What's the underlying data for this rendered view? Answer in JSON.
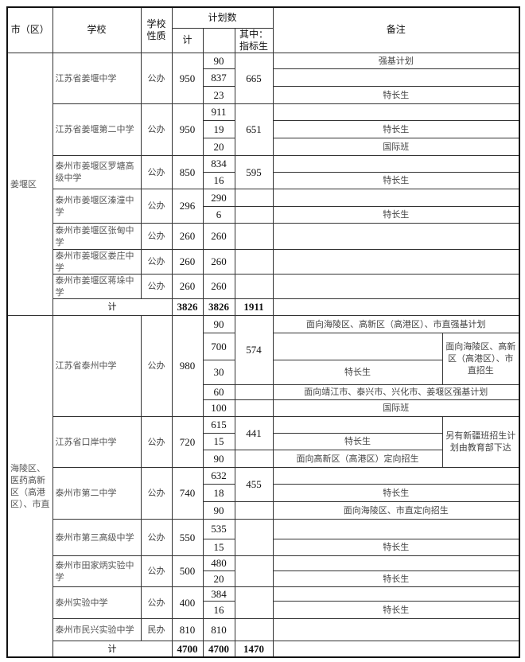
{
  "header": {
    "district": "市（区）",
    "school": "学校",
    "nature": "学校性质",
    "plan": "计划数",
    "total": "计",
    "quota": "其中：指标生",
    "remarks": "备注"
  },
  "jiangyan": {
    "district": "姜堰区",
    "schools": [
      {
        "name": "江苏省姜堰中学",
        "nature": "公办",
        "total": "950",
        "quota": "665",
        "rows": [
          {
            "count": "90",
            "remark": "强基计划"
          },
          {
            "count": "837",
            "remark": ""
          },
          {
            "count": "23",
            "remark": "特长生"
          }
        ]
      },
      {
        "name": "江苏省姜堰第二中学",
        "nature": "公办",
        "total": "950",
        "quota": "651",
        "rows": [
          {
            "count": "911",
            "remark": ""
          },
          {
            "count": "19",
            "remark": "特长生"
          },
          {
            "count": "20",
            "remark": "国际班"
          }
        ]
      },
      {
        "name": "泰州市姜堰区罗塘高级中学",
        "nature": "公办",
        "total": "850",
        "quota": "595",
        "rows": [
          {
            "count": "834",
            "remark": ""
          },
          {
            "count": "16",
            "remark": "特长生"
          }
        ]
      },
      {
        "name": "泰州市姜堰区溱潼中学",
        "nature": "公办",
        "total": "296",
        "rows": [
          {
            "count": "290",
            "remark": ""
          },
          {
            "count": "6",
            "remark": "特长生"
          }
        ]
      },
      {
        "name": "泰州市姜堰区张甸中学",
        "nature": "公办",
        "total": "260",
        "rows": [
          {
            "count": "260"
          }
        ]
      },
      {
        "name": "泰州市姜堰区娄庄中学",
        "nature": "公办",
        "total": "260",
        "rows": [
          {
            "count": "260"
          }
        ]
      },
      {
        "name": "泰州市姜堰区蒋垛中学",
        "nature": "公办",
        "total": "260",
        "rows": [
          {
            "count": "260"
          }
        ]
      }
    ],
    "sum": {
      "label": "计",
      "total": "3826",
      "count": "3826",
      "quota": "1911"
    }
  },
  "hailing": {
    "district": "海陵区、医药高新区（高港区）、市直",
    "schools": [
      {
        "name": "江苏省泰州中学",
        "nature": "公办",
        "total": "980",
        "quota": "574",
        "side_remark": "面向海陵区、高新区（高港区）、市直招生",
        "rows": [
          {
            "count": "90",
            "remark": "面向海陵区、高新区（高港区）、市直强基计划"
          },
          {
            "count": "700",
            "remark": ""
          },
          {
            "count": "30",
            "remark": "特长生"
          },
          {
            "count": "60",
            "remark": "面向靖江市、泰兴市、兴化市、姜堰区强基计划"
          },
          {
            "count": "100",
            "remark": "国际班"
          }
        ]
      },
      {
        "name": "江苏省口岸中学",
        "nature": "公办",
        "total": "720",
        "quota": "441",
        "side_remark": "另有新疆班招生计划由教育部下达",
        "rows": [
          {
            "count": "615",
            "remark": ""
          },
          {
            "count": "15",
            "remark": "特长生"
          },
          {
            "count": "90",
            "remark": "面向高新区（高港区）定向招生"
          }
        ]
      },
      {
        "name": "泰州市第二中学",
        "nature": "公办",
        "total": "740",
        "quota": "455",
        "rows": [
          {
            "count": "632",
            "remark": ""
          },
          {
            "count": "18",
            "remark": "特长生"
          },
          {
            "count": "90",
            "remark": "面向海陵区、市直定向招生"
          }
        ]
      },
      {
        "name": "泰州市第三高级中学",
        "nature": "公办",
        "total": "550",
        "rows": [
          {
            "count": "535",
            "remark": ""
          },
          {
            "count": "15",
            "remark": "特长生"
          }
        ]
      },
      {
        "name": "泰州市田家炳实验中学",
        "nature": "公办",
        "total": "500",
        "rows": [
          {
            "count": "480",
            "remark": ""
          },
          {
            "count": "20",
            "remark": "特长生"
          }
        ]
      },
      {
        "name": "泰州实验中学",
        "nature": "公办",
        "total": "400",
        "rows": [
          {
            "count": "384",
            "remark": ""
          },
          {
            "count": "16",
            "remark": "特长生"
          }
        ]
      },
      {
        "name": "泰州市民兴实验中学",
        "nature": "民办",
        "total": "810",
        "rows": [
          {
            "count": "810"
          }
        ]
      }
    ],
    "sum": {
      "label": "计",
      "total": "4700",
      "count": "4700",
      "quota": "1470"
    }
  }
}
